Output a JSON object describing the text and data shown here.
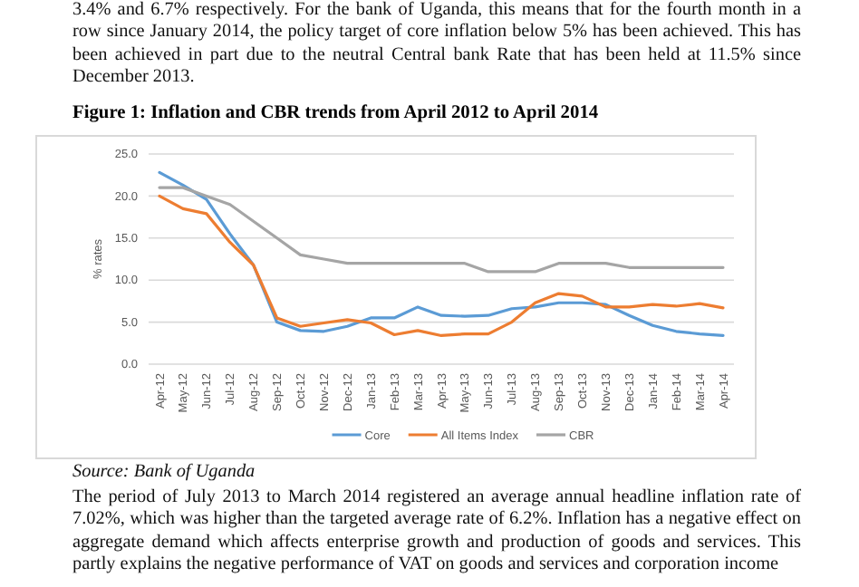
{
  "chart_data": {
    "type": "line",
    "title": "Figure 1: Inflation and CBR trends from April 2012 to April 2014",
    "ylabel": "% rates",
    "categories": [
      "Apr-12",
      "May-12",
      "Jun-12",
      "Jul-12",
      "Aug-12",
      "Sep-12",
      "Oct-12",
      "Nov-12",
      "Dec-12",
      "Jan-13",
      "Feb-13",
      "Mar-13",
      "Apr-13",
      "May-13",
      "Jun-13",
      "Jul-13",
      "Aug-13",
      "Sep-13",
      "Oct-13",
      "Nov-13",
      "Dec-13",
      "Jan-14",
      "Feb-14",
      "Mar-14",
      "Apr-14"
    ],
    "series": [
      {
        "name": "Core",
        "color": "#5b9bd5",
        "values": [
          22.8,
          21.3,
          19.6,
          15.5,
          11.8,
          5.0,
          4.0,
          3.9,
          4.5,
          5.5,
          5.5,
          6.8,
          5.8,
          5.7,
          5.8,
          6.6,
          6.8,
          7.3,
          7.3,
          7.1,
          5.8,
          4.6,
          3.9,
          3.6,
          3.4
        ]
      },
      {
        "name": "All Items Index",
        "color": "#ed7d31",
        "values": [
          20.0,
          18.5,
          17.9,
          14.5,
          11.8,
          5.5,
          4.5,
          4.9,
          5.3,
          4.9,
          3.5,
          4.0,
          3.4,
          3.6,
          3.6,
          5.0,
          7.3,
          8.4,
          8.1,
          6.8,
          6.8,
          7.1,
          6.9,
          7.2,
          6.7
        ]
      },
      {
        "name": "CBR",
        "color": "#a5a5a5",
        "values": [
          21,
          21,
          20,
          19,
          17,
          15,
          13,
          12.5,
          12,
          12,
          12,
          12,
          12,
          12,
          11,
          11,
          11,
          12,
          12,
          12,
          11.5,
          11.5,
          11.5,
          11.5,
          11.5
        ]
      }
    ],
    "ylim": [
      0,
      25
    ],
    "yticks": [
      {
        "value": 0,
        "label": "0.0"
      },
      {
        "value": 5,
        "label": "5.0"
      },
      {
        "value": 10,
        "label": "10.0"
      },
      {
        "value": 15,
        "label": "15.0"
      },
      {
        "value": 20,
        "label": "20.0"
      },
      {
        "value": 25,
        "label": "25.0"
      }
    ],
    "grid": "y",
    "legend": "bottom",
    "marker": "none",
    "line_style": "solid",
    "annotations": [
      "3.4% and 6.7% respectively. For the bank of Uganda, this means that for the fourth month in a row since January 2014, the policy target of core inflation below 5% has been achieved. This has been achieved in part due to the neutral Central bank Rate that has been held at 11.5% since December 2013.",
      "Source: Bank of Uganda",
      "The period of July 2013 to March 2014 registered an average annual headline inflation rate of 7.02%, which was higher than the targeted average rate of 6.2%. Inflation has a negative effect on aggregate demand which affects enterprise growth and production of goods and services. This partly explains the negative performance of VAT on goods and services and corporation income"
    ]
  }
}
